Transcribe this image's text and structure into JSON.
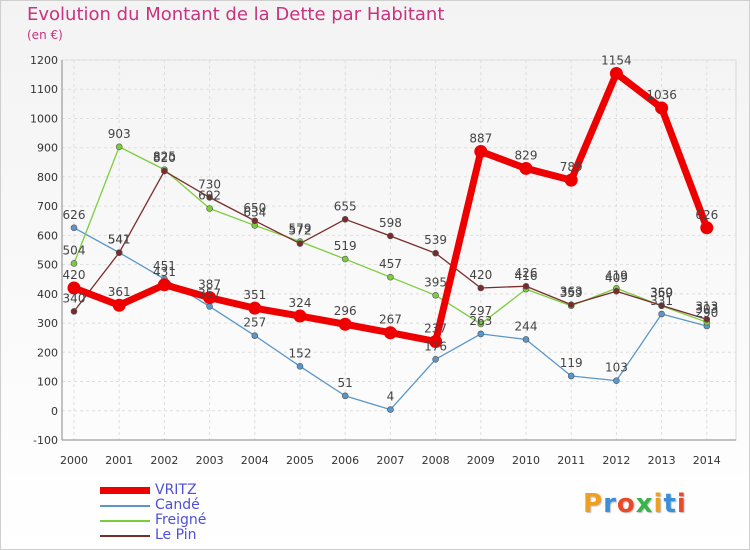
{
  "chart_data": {
    "type": "line",
    "title": "Evolution du Montant de la Dette par Habitant",
    "subtitle": "(en €)",
    "x": [
      "2000",
      "2001",
      "2002",
      "2003",
      "2004",
      "2005",
      "2006",
      "2007",
      "2008",
      "2009",
      "2010",
      "2011",
      "2012",
      "2013",
      "2014"
    ],
    "ylim": [
      -100,
      1200
    ],
    "yticks": [
      -100,
      0,
      100,
      200,
      300,
      400,
      500,
      600,
      700,
      800,
      900,
      1000,
      1100,
      1200
    ],
    "grid": true,
    "legend_placement": "bottom-left",
    "series": [
      {
        "name": "Candé",
        "color": "#5a96c8",
        "values": [
          626,
          541,
          451,
          357,
          257,
          152,
          51,
          4,
          176,
          263,
          244,
          119,
          103,
          331,
          290
        ]
      },
      {
        "name": "Freigné",
        "color": "#7ccd3c",
        "values": [
          504,
          903,
          825,
          692,
          634,
          579,
          519,
          457,
          395,
          297,
          416,
          359,
          419,
          359,
          303
        ]
      },
      {
        "name": "Le Pin",
        "color": "#7a2c2c",
        "values": [
          340,
          541,
          820,
          730,
          650,
          572,
          655,
          598,
          539,
          420,
          426,
          363,
          409,
          360,
          313
        ]
      },
      {
        "name": "VRITZ",
        "color": "#ee0000",
        "values": [
          420,
          361,
          431,
          387,
          351,
          324,
          296,
          267,
          237,
          887,
          829,
          789,
          1154,
          1036,
          626
        ]
      }
    ],
    "legend_order": [
      "VRITZ",
      "Candé",
      "Freigné",
      "Le Pin"
    ]
  },
  "brand": {
    "letters": [
      "P",
      "r",
      "o",
      "x",
      "i",
      "t",
      "i"
    ],
    "colors": [
      "#f0a020",
      "#3a8fd8",
      "#e84a2a",
      "#3ab34a",
      "#f0a020",
      "#3a8fd8",
      "#e84a2a"
    ]
  }
}
